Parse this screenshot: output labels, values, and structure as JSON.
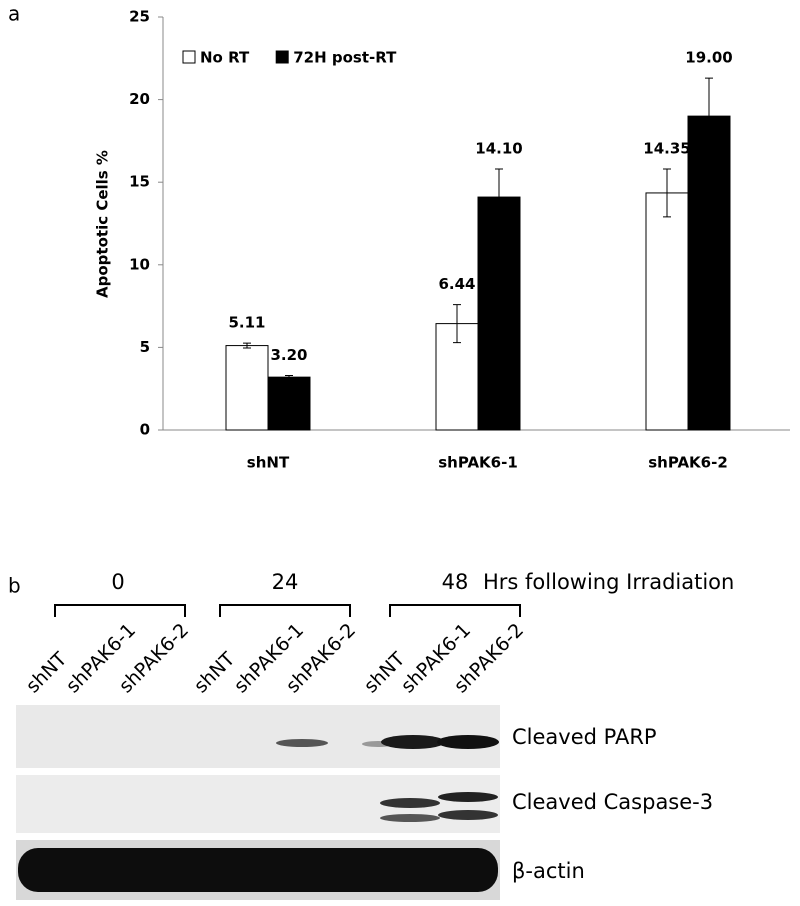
{
  "panel_labels": [
    "a",
    "b"
  ],
  "chart_data": {
    "type": "bar",
    "y_label": "Apoptotic Cells %",
    "categories": [
      "shNT",
      "shPAK6-1",
      "shPAK6-2"
    ],
    "series": [
      {
        "name": "No RT",
        "color": "#ffffff",
        "values": [
          5.11,
          6.44,
          14.35
        ],
        "errors": [
          0.15,
          1.15,
          1.45
        ],
        "value_labels": [
          "5.11",
          "6.44",
          "14.35"
        ]
      },
      {
        "name": "72H post-RT",
        "color": "#000000",
        "values": [
          3.2,
          14.1,
          19.0
        ],
        "errors": [
          0.1,
          1.7,
          2.3
        ],
        "value_labels": [
          "3.20",
          "14.10",
          "19.00"
        ]
      }
    ],
    "ylim": [
      0,
      25
    ],
    "yticks": [
      0,
      5,
      10,
      15,
      20,
      25
    ],
    "legend": "top-left"
  },
  "blot": {
    "time_points": [
      "0",
      "24",
      "48"
    ],
    "time_axis_label": "Hrs following Irradiation",
    "lanes": [
      "shNT",
      "shPAK6-1",
      "shPAK6-2",
      "shNT",
      "shPAK6-1",
      "shPAK6-2",
      "shNT",
      "shPAK6-1",
      "shPAK6-2"
    ],
    "bands": [
      "Cleaved PARP",
      "Cleaved Caspase-3",
      "β-actin"
    ]
  }
}
